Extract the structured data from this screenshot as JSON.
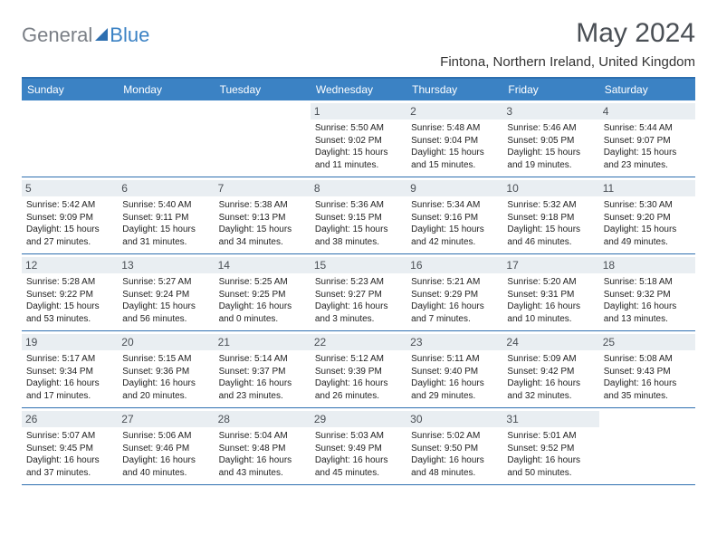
{
  "brand": {
    "text1": "General",
    "text2": "Blue"
  },
  "title": "May 2024",
  "subtitle": "Fintona, Northern Ireland, United Kingdom",
  "colors": {
    "header_bar": "#3b82c4",
    "border": "#2e6fb0",
    "daynum_bg": "#e9eef2",
    "title_color": "#4a4f55"
  },
  "weekdays": [
    "Sunday",
    "Monday",
    "Tuesday",
    "Wednesday",
    "Thursday",
    "Friday",
    "Saturday"
  ],
  "weeks": [
    [
      null,
      null,
      null,
      {
        "n": "1",
        "sr": "5:50 AM",
        "ss": "9:02 PM",
        "dl": "15 hours and 11 minutes."
      },
      {
        "n": "2",
        "sr": "5:48 AM",
        "ss": "9:04 PM",
        "dl": "15 hours and 15 minutes."
      },
      {
        "n": "3",
        "sr": "5:46 AM",
        "ss": "9:05 PM",
        "dl": "15 hours and 19 minutes."
      },
      {
        "n": "4",
        "sr": "5:44 AM",
        "ss": "9:07 PM",
        "dl": "15 hours and 23 minutes."
      }
    ],
    [
      {
        "n": "5",
        "sr": "5:42 AM",
        "ss": "9:09 PM",
        "dl": "15 hours and 27 minutes."
      },
      {
        "n": "6",
        "sr": "5:40 AM",
        "ss": "9:11 PM",
        "dl": "15 hours and 31 minutes."
      },
      {
        "n": "7",
        "sr": "5:38 AM",
        "ss": "9:13 PM",
        "dl": "15 hours and 34 minutes."
      },
      {
        "n": "8",
        "sr": "5:36 AM",
        "ss": "9:15 PM",
        "dl": "15 hours and 38 minutes."
      },
      {
        "n": "9",
        "sr": "5:34 AM",
        "ss": "9:16 PM",
        "dl": "15 hours and 42 minutes."
      },
      {
        "n": "10",
        "sr": "5:32 AM",
        "ss": "9:18 PM",
        "dl": "15 hours and 46 minutes."
      },
      {
        "n": "11",
        "sr": "5:30 AM",
        "ss": "9:20 PM",
        "dl": "15 hours and 49 minutes."
      }
    ],
    [
      {
        "n": "12",
        "sr": "5:28 AM",
        "ss": "9:22 PM",
        "dl": "15 hours and 53 minutes."
      },
      {
        "n": "13",
        "sr": "5:27 AM",
        "ss": "9:24 PM",
        "dl": "15 hours and 56 minutes."
      },
      {
        "n": "14",
        "sr": "5:25 AM",
        "ss": "9:25 PM",
        "dl": "16 hours and 0 minutes."
      },
      {
        "n": "15",
        "sr": "5:23 AM",
        "ss": "9:27 PM",
        "dl": "16 hours and 3 minutes."
      },
      {
        "n": "16",
        "sr": "5:21 AM",
        "ss": "9:29 PM",
        "dl": "16 hours and 7 minutes."
      },
      {
        "n": "17",
        "sr": "5:20 AM",
        "ss": "9:31 PM",
        "dl": "16 hours and 10 minutes."
      },
      {
        "n": "18",
        "sr": "5:18 AM",
        "ss": "9:32 PM",
        "dl": "16 hours and 13 minutes."
      }
    ],
    [
      {
        "n": "19",
        "sr": "5:17 AM",
        "ss": "9:34 PM",
        "dl": "16 hours and 17 minutes."
      },
      {
        "n": "20",
        "sr": "5:15 AM",
        "ss": "9:36 PM",
        "dl": "16 hours and 20 minutes."
      },
      {
        "n": "21",
        "sr": "5:14 AM",
        "ss": "9:37 PM",
        "dl": "16 hours and 23 minutes."
      },
      {
        "n": "22",
        "sr": "5:12 AM",
        "ss": "9:39 PM",
        "dl": "16 hours and 26 minutes."
      },
      {
        "n": "23",
        "sr": "5:11 AM",
        "ss": "9:40 PM",
        "dl": "16 hours and 29 minutes."
      },
      {
        "n": "24",
        "sr": "5:09 AM",
        "ss": "9:42 PM",
        "dl": "16 hours and 32 minutes."
      },
      {
        "n": "25",
        "sr": "5:08 AM",
        "ss": "9:43 PM",
        "dl": "16 hours and 35 minutes."
      }
    ],
    [
      {
        "n": "26",
        "sr": "5:07 AM",
        "ss": "9:45 PM",
        "dl": "16 hours and 37 minutes."
      },
      {
        "n": "27",
        "sr": "5:06 AM",
        "ss": "9:46 PM",
        "dl": "16 hours and 40 minutes."
      },
      {
        "n": "28",
        "sr": "5:04 AM",
        "ss": "9:48 PM",
        "dl": "16 hours and 43 minutes."
      },
      {
        "n": "29",
        "sr": "5:03 AM",
        "ss": "9:49 PM",
        "dl": "16 hours and 45 minutes."
      },
      {
        "n": "30",
        "sr": "5:02 AM",
        "ss": "9:50 PM",
        "dl": "16 hours and 48 minutes."
      },
      {
        "n": "31",
        "sr": "5:01 AM",
        "ss": "9:52 PM",
        "dl": "16 hours and 50 minutes."
      },
      null
    ]
  ],
  "labels": {
    "sunrise": "Sunrise:",
    "sunset": "Sunset:",
    "daylight": "Daylight:"
  }
}
